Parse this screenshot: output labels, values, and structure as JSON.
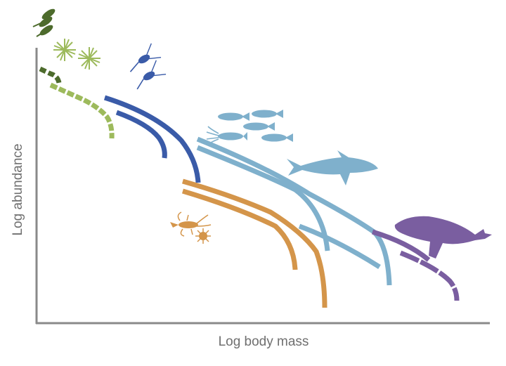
{
  "axes": {
    "x_label": "Log body mass",
    "y_label": "Log abundance"
  },
  "colors": {
    "axis": "#8a8a8a",
    "phytoplankton": "#4d6b2c",
    "microzooplankton": "#9dba5c",
    "zooplankton": "#3a5ba8",
    "benthos": "#d4954a",
    "fish": "#7fb0cc",
    "mammals": "#7a5ea0"
  },
  "icons": [
    "diatom-chain-icon",
    "radiolarian-icon",
    "copepod-icon",
    "fish-school-icon",
    "squid-icon",
    "shark-icon",
    "lobster-icon",
    "sea-urchin-icon",
    "whale-icon"
  ]
}
